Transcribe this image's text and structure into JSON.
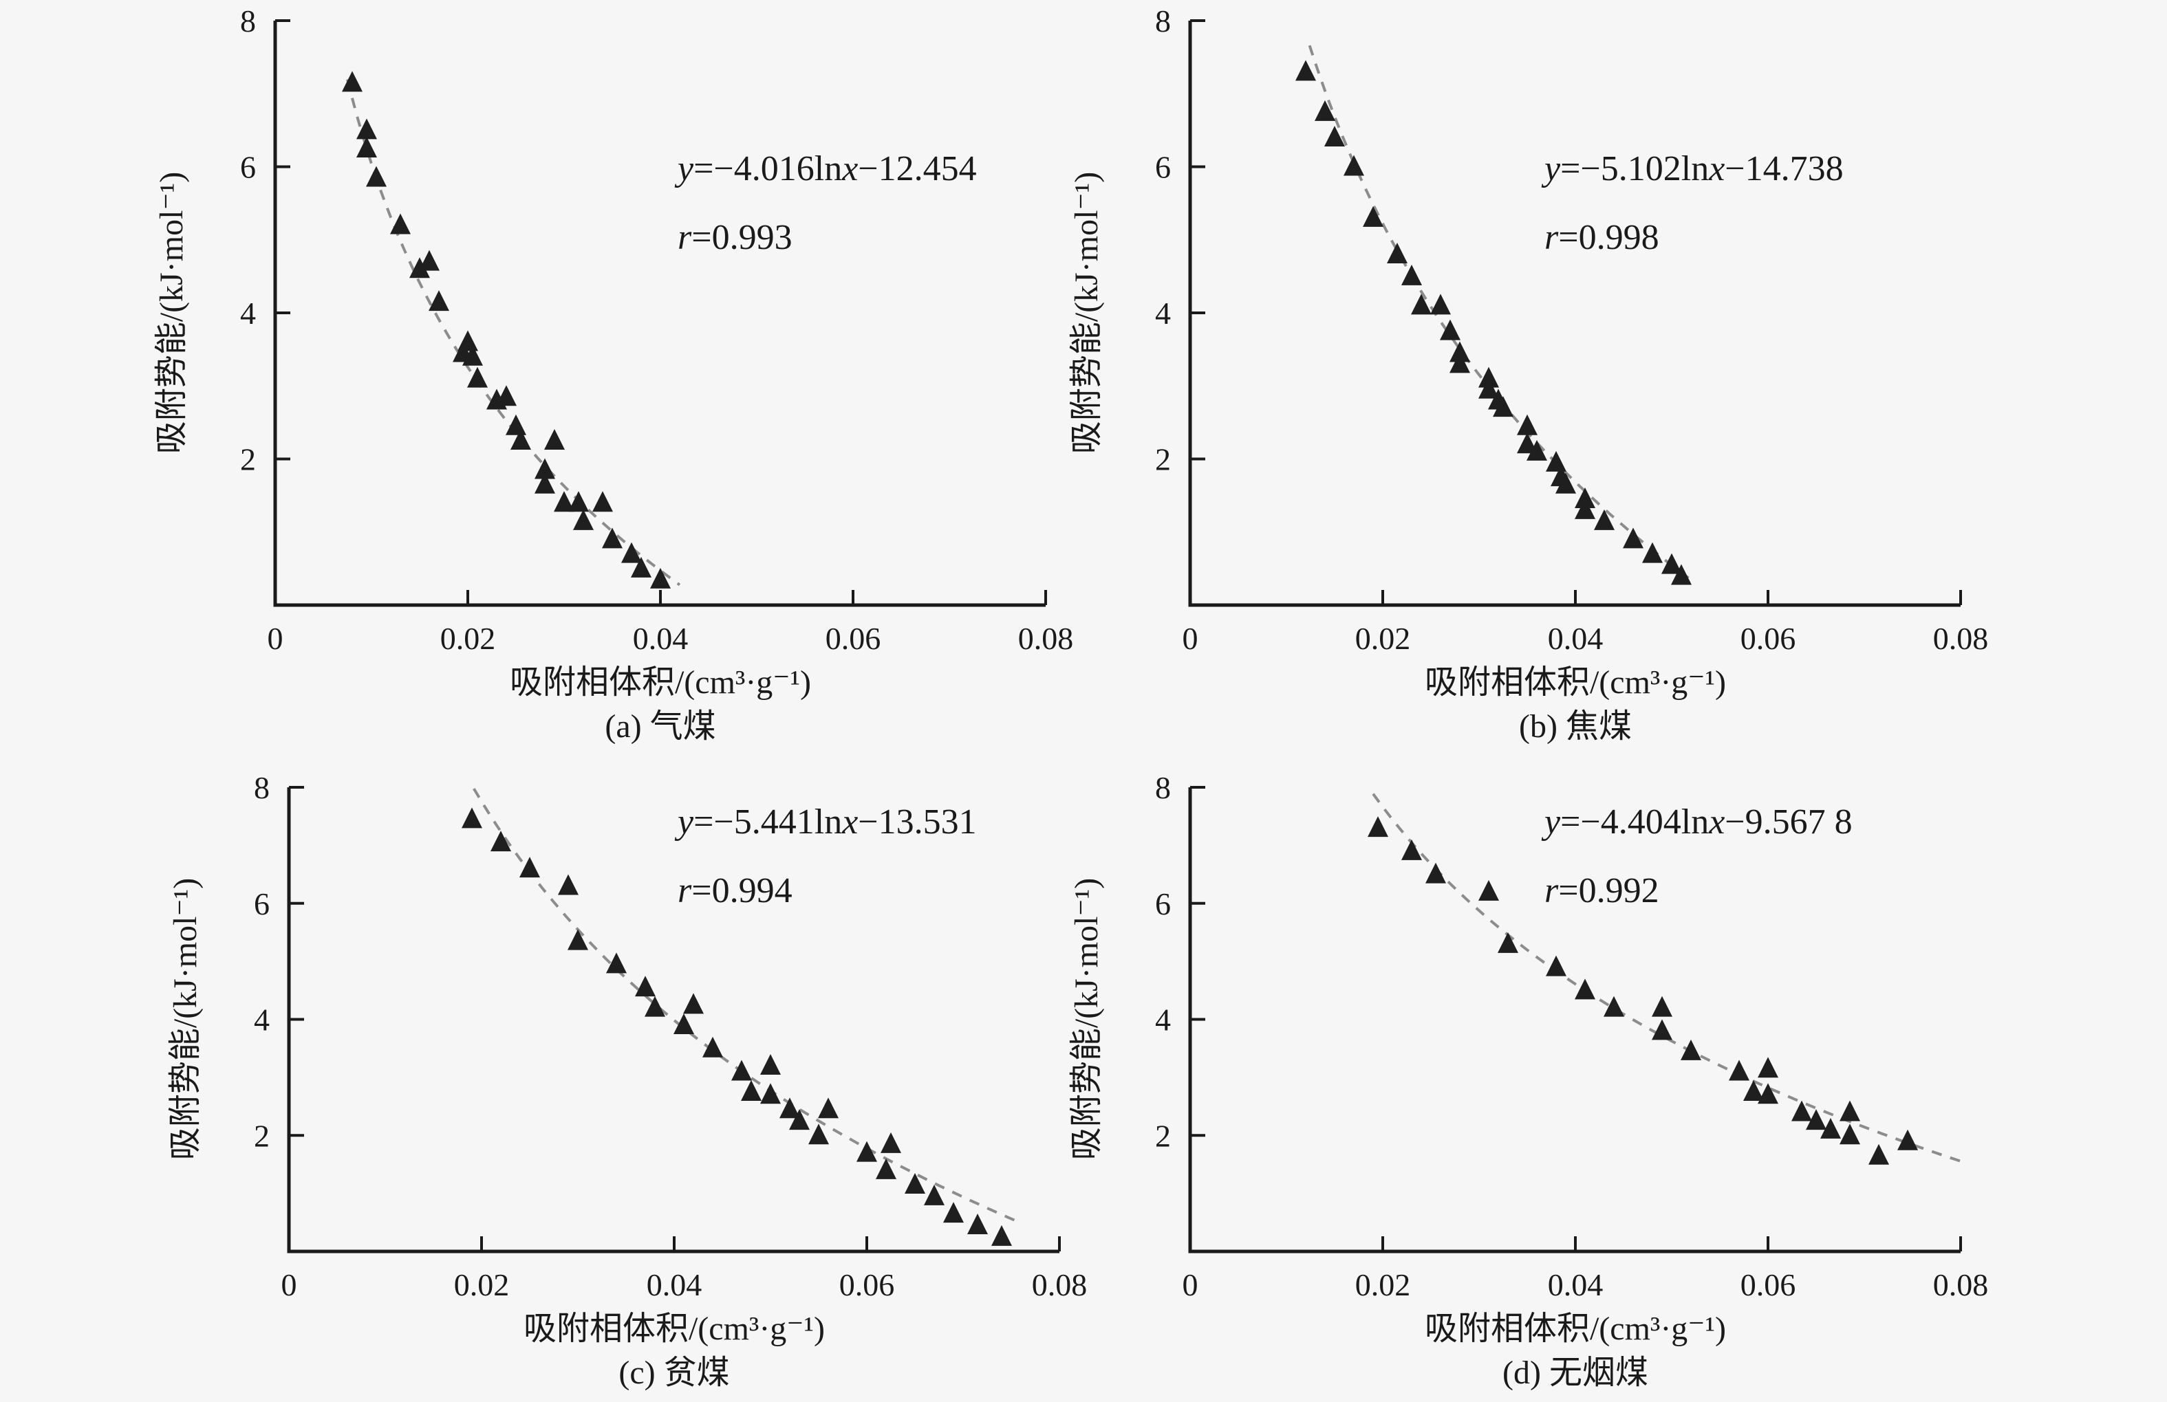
{
  "figure": {
    "background": "#f6f6f6",
    "axis_color": "#1a1a1a",
    "marker_color": "#1f1f1f",
    "fit_line_color": "#8c8c8c",
    "x_axis": {
      "label": "吸附相体积/(cm³·g⁻¹)",
      "ticks": [
        "0",
        "0.02",
        "0.04",
        "0.06",
        "0.08"
      ],
      "tick_values": [
        0,
        0.02,
        0.04,
        0.06,
        0.08
      ],
      "range": [
        0,
        0.08
      ]
    },
    "y_axis": {
      "label": "吸附势能/(kJ·mol⁻¹)",
      "ticks": [
        "2",
        "4",
        "6",
        "8"
      ],
      "tick_values": [
        2,
        4,
        6,
        8
      ],
      "range": [
        0,
        8
      ]
    }
  },
  "chart_data": [
    {
      "type": "scatter",
      "panel": "a",
      "caption": "(a) 气煤",
      "equation": "y=−4.016lnx−12.454",
      "r_text": "r=0.993",
      "slope": -4.016,
      "intercept": -12.454,
      "fit_x_range": [
        0.0075,
        0.042
      ],
      "xlabel": "吸附相体积/(cm³·g⁻¹)",
      "ylabel": "吸附势能/(kJ·mol⁻¹)",
      "xlim": [
        0,
        0.08
      ],
      "ylim": [
        0,
        8
      ],
      "points": [
        [
          0.008,
          7.15
        ],
        [
          0.0095,
          6.5
        ],
        [
          0.0095,
          6.25
        ],
        [
          0.0105,
          5.85
        ],
        [
          0.013,
          5.2
        ],
        [
          0.015,
          4.6
        ],
        [
          0.016,
          4.7
        ],
        [
          0.017,
          4.15
        ],
        [
          0.0195,
          3.45
        ],
        [
          0.02,
          3.6
        ],
        [
          0.0205,
          3.4
        ],
        [
          0.021,
          3.1
        ],
        [
          0.023,
          2.8
        ],
        [
          0.024,
          2.85
        ],
        [
          0.025,
          2.45
        ],
        [
          0.0255,
          2.25
        ],
        [
          0.029,
          2.25
        ],
        [
          0.028,
          1.85
        ],
        [
          0.028,
          1.65
        ],
        [
          0.03,
          1.4
        ],
        [
          0.0315,
          1.4
        ],
        [
          0.034,
          1.4
        ],
        [
          0.032,
          1.15
        ],
        [
          0.035,
          0.9
        ],
        [
          0.037,
          0.7
        ],
        [
          0.038,
          0.5
        ],
        [
          0.04,
          0.35
        ]
      ]
    },
    {
      "type": "scatter",
      "panel": "b",
      "caption": "(b) 焦煤",
      "equation": "y=−5.102lnx−14.738",
      "r_text": "r=0.998",
      "slope": -5.102,
      "intercept": -14.738,
      "fit_x_range": [
        0.0124,
        0.0523
      ],
      "xlabel": "吸附相体积/(cm³·g⁻¹)",
      "ylabel": "吸附势能/(kJ·mol⁻¹)",
      "xlim": [
        0,
        0.08
      ],
      "ylim": [
        0,
        8
      ],
      "points": [
        [
          0.012,
          7.3
        ],
        [
          0.014,
          6.75
        ],
        [
          0.015,
          6.4
        ],
        [
          0.017,
          6.0
        ],
        [
          0.019,
          5.3
        ],
        [
          0.0215,
          4.8
        ],
        [
          0.023,
          4.5
        ],
        [
          0.024,
          4.1
        ],
        [
          0.026,
          4.1
        ],
        [
          0.027,
          3.75
        ],
        [
          0.028,
          3.45
        ],
        [
          0.028,
          3.3
        ],
        [
          0.031,
          3.1
        ],
        [
          0.031,
          2.95
        ],
        [
          0.032,
          2.8
        ],
        [
          0.0325,
          2.7
        ],
        [
          0.035,
          2.45
        ],
        [
          0.035,
          2.2
        ],
        [
          0.036,
          2.1
        ],
        [
          0.038,
          1.95
        ],
        [
          0.0385,
          1.75
        ],
        [
          0.039,
          1.65
        ],
        [
          0.041,
          1.45
        ],
        [
          0.041,
          1.3
        ],
        [
          0.043,
          1.15
        ],
        [
          0.046,
          0.9
        ],
        [
          0.048,
          0.7
        ],
        [
          0.05,
          0.55
        ],
        [
          0.051,
          0.4
        ]
      ]
    },
    {
      "type": "scatter",
      "panel": "c",
      "caption": "(c) 贫煤",
      "equation": "y=−5.441lnx−13.531",
      "r_text": "r=0.994",
      "slope": -5.441,
      "intercept": -13.531,
      "fit_x_range": [
        0.0192,
        0.0755
      ],
      "xlabel": "吸附相体积/(cm³·g⁻¹)",
      "ylabel": "吸附势能/(kJ·mol⁻¹)",
      "xlim": [
        0,
        0.08
      ],
      "ylim": [
        0,
        8
      ],
      "points": [
        [
          0.019,
          7.45
        ],
        [
          0.022,
          7.05
        ],
        [
          0.025,
          6.6
        ],
        [
          0.029,
          6.3
        ],
        [
          0.03,
          5.35
        ],
        [
          0.034,
          4.95
        ],
        [
          0.037,
          4.55
        ],
        [
          0.038,
          4.2
        ],
        [
          0.042,
          4.25
        ],
        [
          0.041,
          3.9
        ],
        [
          0.044,
          3.5
        ],
        [
          0.047,
          3.1
        ],
        [
          0.05,
          3.2
        ],
        [
          0.048,
          2.75
        ],
        [
          0.05,
          2.7
        ],
        [
          0.052,
          2.45
        ],
        [
          0.053,
          2.25
        ],
        [
          0.056,
          2.45
        ],
        [
          0.055,
          2.0
        ],
        [
          0.06,
          1.7
        ],
        [
          0.0625,
          1.85
        ],
        [
          0.062,
          1.4
        ],
        [
          0.065,
          1.15
        ],
        [
          0.067,
          0.95
        ],
        [
          0.069,
          0.65
        ],
        [
          0.0715,
          0.45
        ],
        [
          0.074,
          0.25
        ]
      ]
    },
    {
      "type": "scatter",
      "panel": "d",
      "caption": "(d) 无烟煤",
      "equation": "y=−4.404lnx−9.567 8",
      "r_text": "r=0.992",
      "slope": -4.404,
      "intercept": -9.5678,
      "fit_x_range": [
        0.019,
        0.0805
      ],
      "xlabel": "吸附相体积/(cm³·g⁻¹)",
      "ylabel": "吸附势能/(kJ·mol⁻¹)",
      "xlim": [
        0,
        0.08
      ],
      "ylim": [
        0,
        8
      ],
      "points": [
        [
          0.0195,
          7.3
        ],
        [
          0.023,
          6.9
        ],
        [
          0.0255,
          6.5
        ],
        [
          0.031,
          6.2
        ],
        [
          0.033,
          5.3
        ],
        [
          0.038,
          4.9
        ],
        [
          0.041,
          4.5
        ],
        [
          0.044,
          4.2
        ],
        [
          0.049,
          4.2
        ],
        [
          0.049,
          3.8
        ],
        [
          0.052,
          3.45
        ],
        [
          0.057,
          3.1
        ],
        [
          0.06,
          3.15
        ],
        [
          0.0585,
          2.75
        ],
        [
          0.06,
          2.7
        ],
        [
          0.0635,
          2.4
        ],
        [
          0.065,
          2.25
        ],
        [
          0.0665,
          2.1
        ],
        [
          0.0685,
          2.4
        ],
        [
          0.0685,
          2.0
        ],
        [
          0.0715,
          1.65
        ],
        [
          0.0745,
          1.9
        ]
      ]
    }
  ]
}
